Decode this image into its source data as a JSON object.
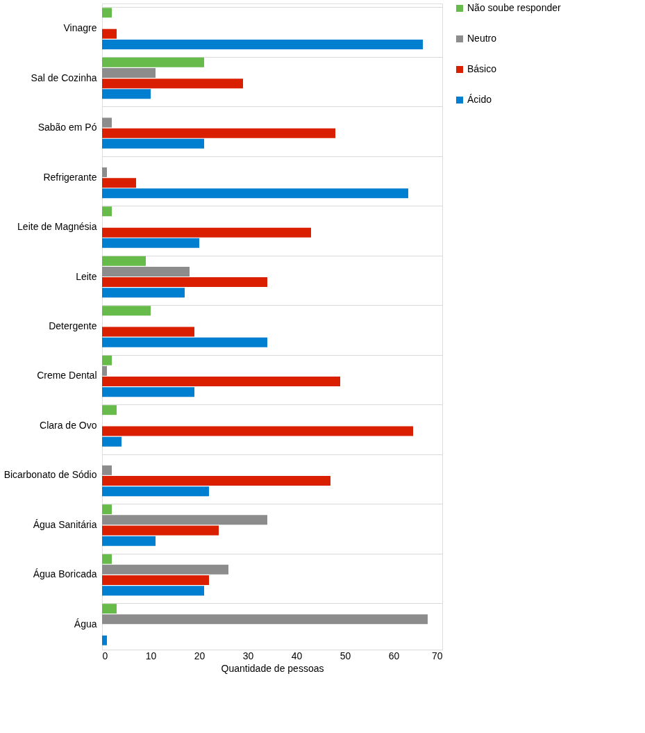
{
  "chart_data": {
    "type": "bar",
    "orientation": "horizontal",
    "xlabel": "Quantidade de pessoas",
    "categories": [
      "Vinagre",
      "Sal de Cozinha",
      "Sabão em Pó",
      "Refrigerante",
      "Leite de Magnésia",
      "Leite",
      "Detergente",
      "Creme Dental",
      "Clara de Ovo",
      "Bicarbonato de Sódio",
      "Água Sanitária",
      "Água Boricada",
      "Água"
    ],
    "series": [
      {
        "name": "Não soube responder",
        "color": "#66bb4a",
        "values": [
          2,
          21,
          0,
          0,
          2,
          9,
          10,
          2,
          3,
          0,
          2,
          2,
          3
        ]
      },
      {
        "name": "Neutro",
        "color": "#8c8c8c",
        "values": [
          0,
          11,
          2,
          1,
          0,
          18,
          0,
          1,
          0,
          2,
          34,
          26,
          67
        ]
      },
      {
        "name": "Básico",
        "color": "#d91f00",
        "values": [
          3,
          29,
          48,
          7,
          43,
          34,
          19,
          49,
          64,
          47,
          24,
          22,
          0
        ]
      },
      {
        "name": "Ácido",
        "color": "#007ecf",
        "values": [
          66,
          10,
          21,
          63,
          20,
          17,
          34,
          19,
          4,
          22,
          11,
          21,
          1
        ]
      }
    ],
    "xlim": [
      0,
      70
    ],
    "xticks": [
      0,
      10,
      20,
      30,
      40,
      50,
      60,
      70
    ],
    "grid": "y",
    "legend": "right"
  }
}
